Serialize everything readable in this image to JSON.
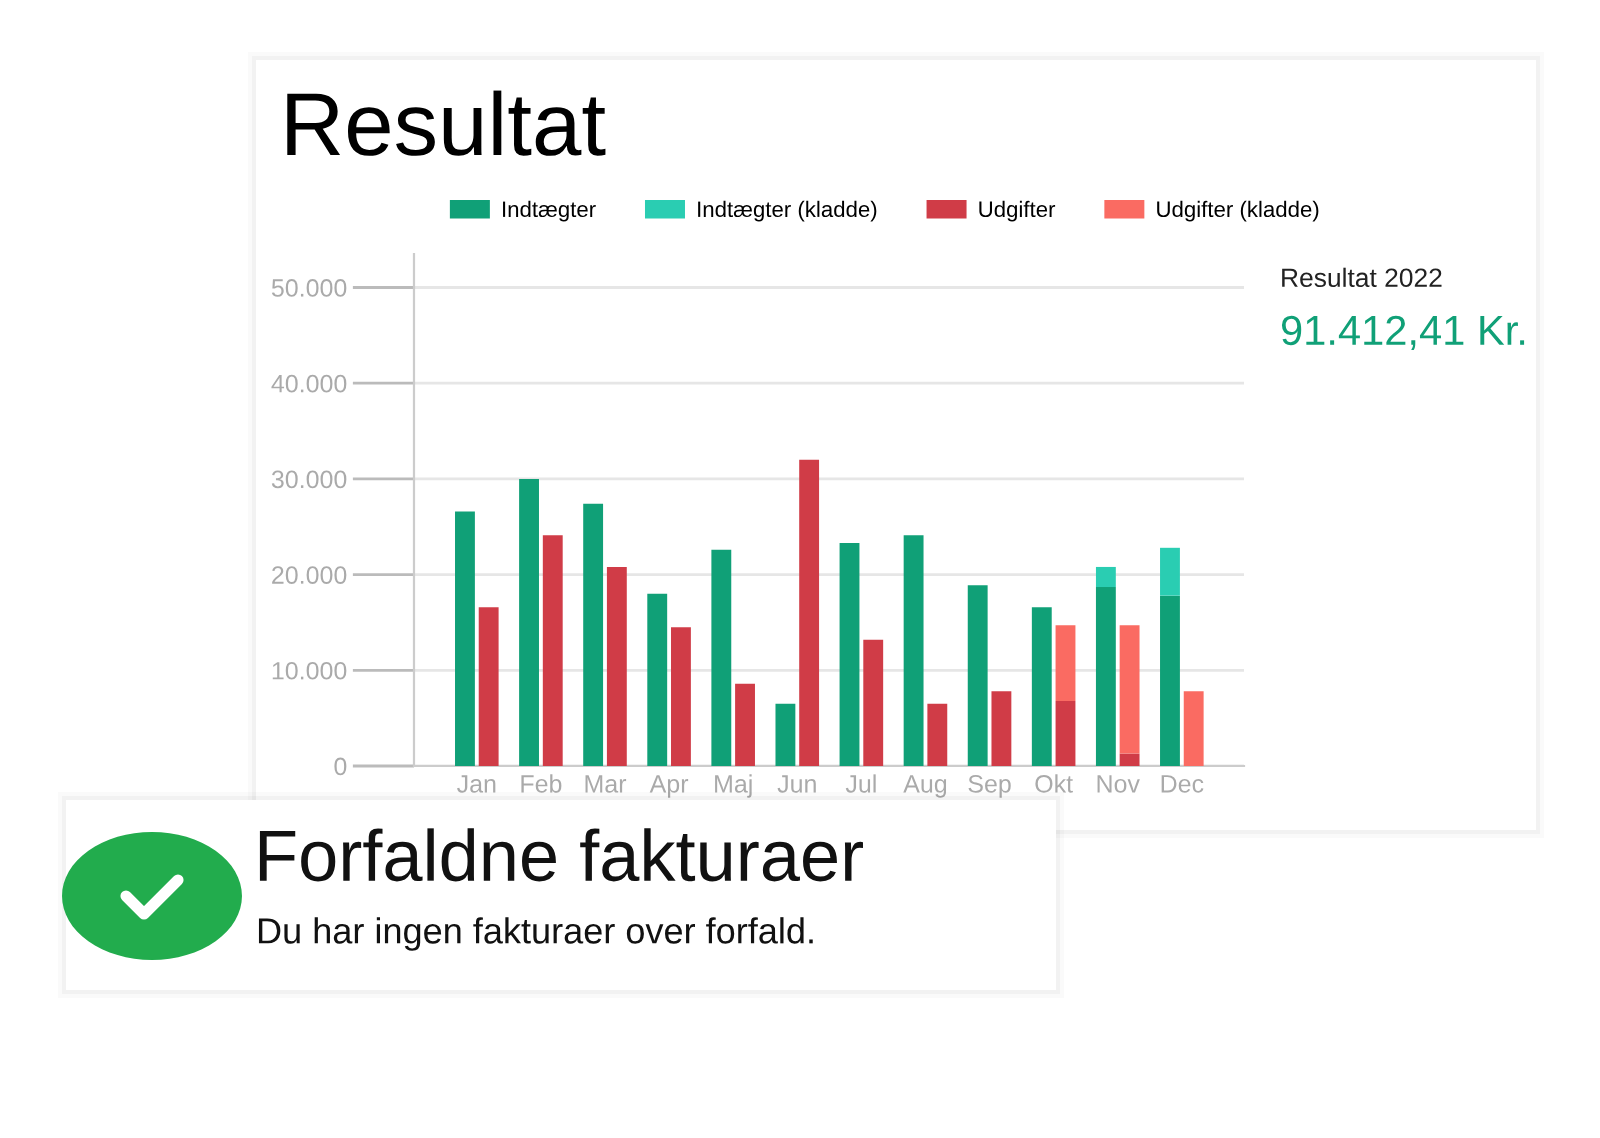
{
  "chart_data": {
    "type": "bar",
    "title": "Resultat",
    "categories": [
      "Jan",
      "Feb",
      "Mar",
      "Apr",
      "Maj",
      "Jun",
      "Jul",
      "Aug",
      "Sep",
      "Okt",
      "Nov",
      "Dec"
    ],
    "series": [
      {
        "name": "Indtægter",
        "color": "#10a077",
        "values": [
          26600,
          30000,
          27400,
          18000,
          22600,
          6500,
          23300,
          24100,
          18900,
          16600,
          18700,
          17800
        ]
      },
      {
        "name": "Indtægter (kladde)",
        "color": "#2acdb2",
        "base": [
          null,
          null,
          null,
          null,
          null,
          null,
          null,
          null,
          null,
          null,
          18700,
          17800
        ],
        "values": [
          null,
          null,
          null,
          null,
          null,
          null,
          null,
          null,
          null,
          null,
          2100,
          5000
        ]
      },
      {
        "name": "Udgifter",
        "color": "#d03c47",
        "values": [
          16600,
          24100,
          20800,
          14500,
          8600,
          32000,
          13200,
          6500,
          7800,
          6800,
          1300,
          null
        ]
      },
      {
        "name": "Udgifter (kladde)",
        "color": "#fa6b62",
        "base": [
          null,
          null,
          null,
          null,
          null,
          null,
          null,
          null,
          null,
          6800,
          1300,
          0
        ],
        "values": [
          null,
          null,
          null,
          null,
          null,
          null,
          null,
          null,
          null,
          7900,
          13400,
          7800
        ]
      }
    ],
    "ylim": [
      0,
      53500
    ],
    "yticks": [
      0,
      {
        "value": 10000,
        "label": "10.000"
      },
      {
        "value": 20000,
        "label": "20.000"
      },
      {
        "value": 30000,
        "label": "30.000"
      },
      {
        "value": 40000,
        "label": "40.000"
      },
      {
        "value": 50000,
        "label": "50.000"
      }
    ],
    "grid": "y",
    "legend": "top",
    "annotations": [
      "Resultat 2022",
      "91.412,41 Kr.",
      "Forfaldne fakturaer",
      "Du har ingen fakturaer over forfald."
    ]
  }
}
